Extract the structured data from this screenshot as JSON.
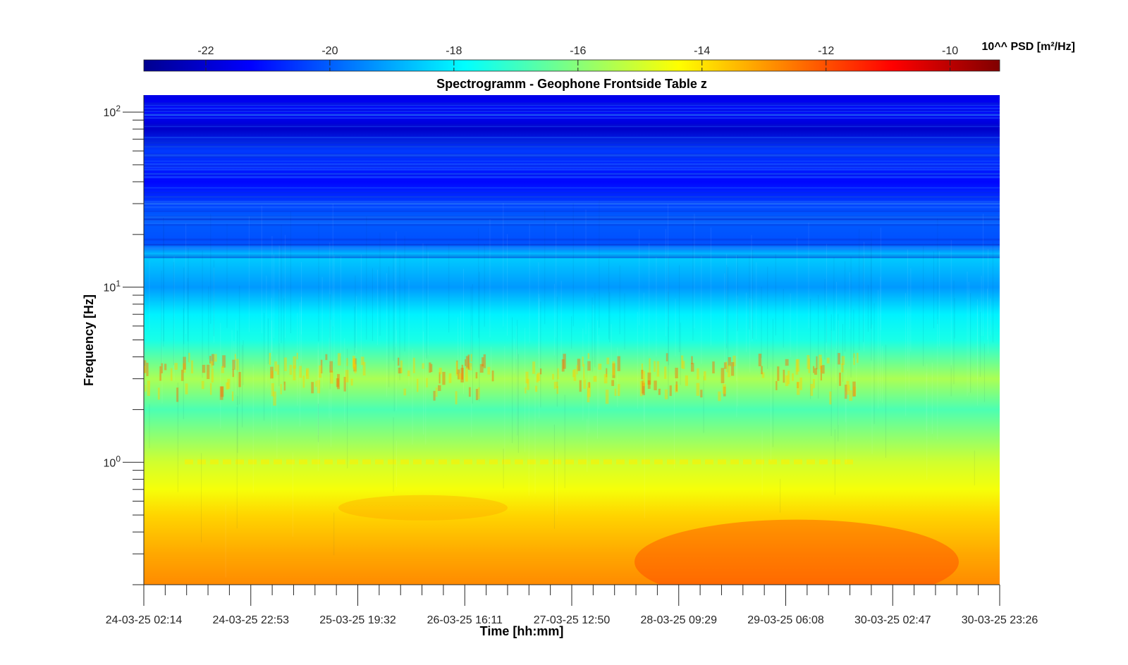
{
  "chart_data": {
    "type": "heatmap",
    "title": "Spectrogramm - Geophone Frontside Table z",
    "xlabel": "Time [hh:mm]",
    "ylabel": "Frequency [Hz]",
    "yscale": "log",
    "ylim": [
      0.2,
      125
    ],
    "y_ticks": [
      {
        "value": 100,
        "base": "10",
        "exp": "2"
      },
      {
        "value": 10,
        "base": "10",
        "exp": "1"
      },
      {
        "value": 1,
        "base": "10",
        "exp": "0"
      }
    ],
    "x_tick_labels": [
      "24-03-25 02:14",
      "24-03-25 22:53",
      "25-03-25 19:32",
      "26-03-25 16:11",
      "27-03-25 12:50",
      "28-03-25 09:29",
      "29-03-25 06:08",
      "30-03-25 02:47",
      "30-03-25 23:26"
    ],
    "colorbar": {
      "label": "10^^ PSD [m²/Hz]",
      "range": [
        -23,
        -9.2
      ],
      "ticks": [
        -22,
        -20,
        -18,
        -16,
        -14,
        -12,
        -10
      ],
      "colormap": "jet"
    },
    "levels_by_frequency": [
      {
        "freq": 125,
        "log10_psd": -21.6
      },
      {
        "freq": 100,
        "log10_psd": -21.3
      },
      {
        "freq": 80,
        "log10_psd": -22.0
      },
      {
        "freq": 60,
        "log10_psd": -20.5
      },
      {
        "freq": 40,
        "log10_psd": -21.2
      },
      {
        "freq": 25,
        "log10_psd": -20.0
      },
      {
        "freq": 18,
        "log10_psd": -20.2
      },
      {
        "freq": 15,
        "log10_psd": -18.5
      },
      {
        "freq": 10,
        "log10_psd": -19.2
      },
      {
        "freq": 7,
        "log10_psd": -18.0
      },
      {
        "freq": 5,
        "log10_psd": -17.5
      },
      {
        "freq": 3,
        "log10_psd": -15.5
      },
      {
        "freq": 2,
        "log10_psd": -16.8
      },
      {
        "freq": 1,
        "log10_psd": -15.0
      },
      {
        "freq": 0.7,
        "log10_psd": -14.5
      },
      {
        "freq": 0.5,
        "log10_psd": -13.8
      },
      {
        "freq": 0.3,
        "log10_psd": -13.2
      },
      {
        "freq": 0.2,
        "log10_psd": -12.8
      }
    ]
  }
}
